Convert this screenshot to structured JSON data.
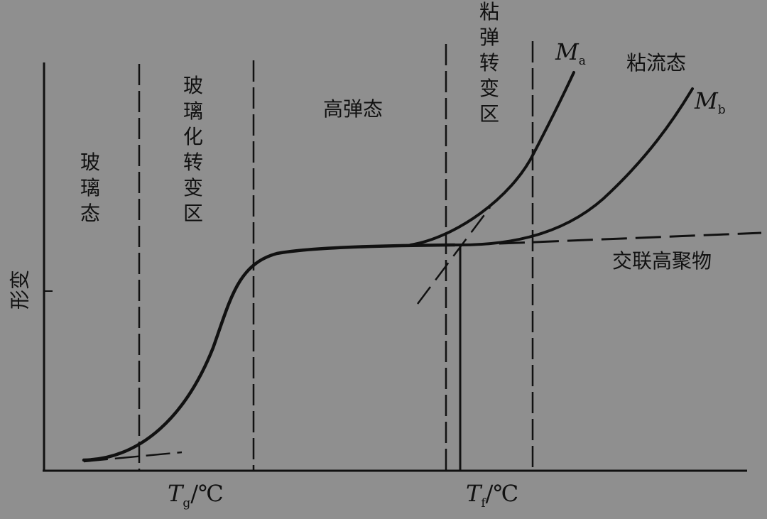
{
  "y_axis_label": "形变",
  "regions": {
    "glassy": "玻璃态",
    "glass_transition": "玻璃化转变区",
    "high_elastic": "高弹态",
    "viscoelastic_transition": "粘弹转变区",
    "viscous_flow": "粘流态"
  },
  "curve_labels": {
    "ma_letter": "M",
    "ma_sub": "a",
    "mb_letter": "M",
    "mb_sub": "b",
    "crosslinked": "交联高聚物"
  },
  "x_axis": {
    "tg_letter": "T",
    "tg_sub": "g",
    "tg_unit": "/℃",
    "tf_letter": "T",
    "tf_sub": "f",
    "tf_unit": "/℃"
  },
  "colors": {
    "background": "#8f8f8f",
    "ink": "#111111"
  }
}
